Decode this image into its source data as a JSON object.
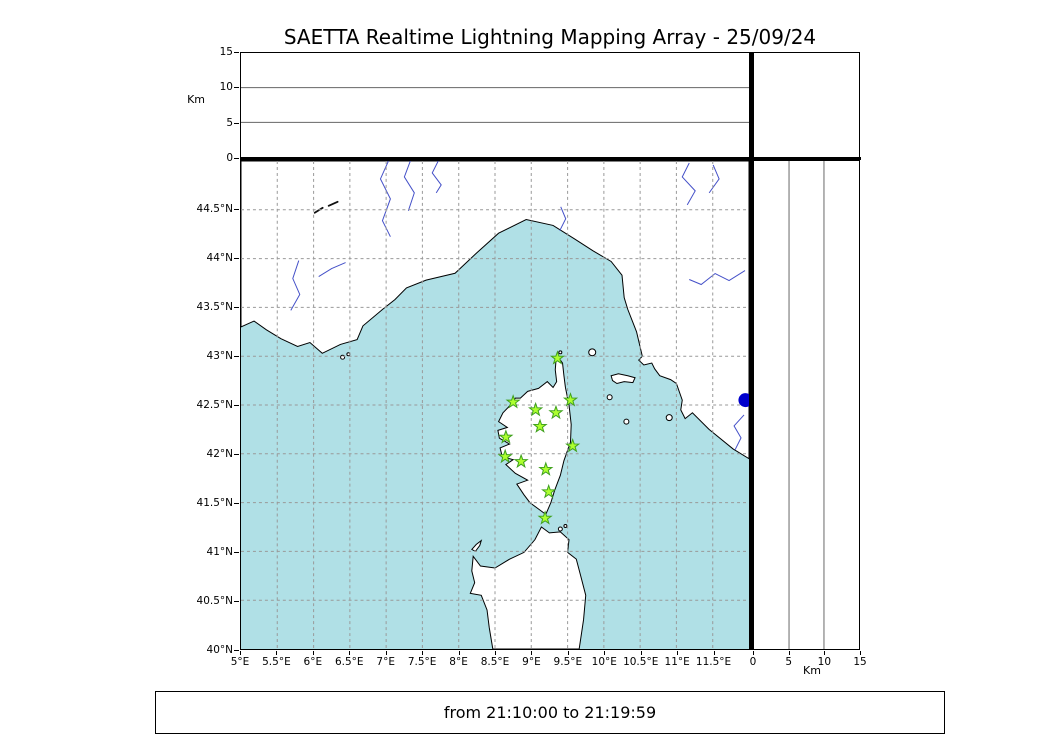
{
  "title": "SAETTA Realtime Lightning Mapping Array - 25/09/24",
  "status_bar": {
    "text": "from 21:10:00 to 21:19:59"
  },
  "colors": {
    "sea": "#b0e0e6",
    "land": "#ffffff",
    "coastline": "#000000",
    "river": "#4450c8",
    "grid": "#999999",
    "station_fill": "#adff2f",
    "station_stroke": "#3fa01e",
    "event_marker": "#0000cd"
  },
  "axes": {
    "altitude_label": "Km",
    "altitude_ticks": [
      0,
      5,
      10,
      15
    ],
    "altitude_range": [
      0,
      15
    ],
    "altitude_gridlines": [
      5,
      10
    ],
    "longitude_range": [
      5,
      12
    ],
    "latitude_range": [
      40,
      45
    ],
    "longitude_tick_values": [
      5,
      5.5,
      6,
      6.5,
      7,
      7.5,
      8,
      8.5,
      9,
      9.5,
      10,
      10.5,
      11,
      11.5
    ],
    "longitude_tick_labels": [
      "5°E",
      "5.5°E",
      "6°E",
      "6.5°E",
      "7°E",
      "7.5°E",
      "8°E",
      "8.5°E",
      "9°E",
      "9.5°E",
      "10°E",
      "10.5°E",
      "11°E",
      "11.5°E"
    ],
    "latitude_tick_values": [
      44.5,
      44,
      43.5,
      43,
      42.5,
      42,
      41.5,
      41,
      40.5,
      40
    ],
    "latitude_tick_labels": [
      "44.5°N",
      "44°N",
      "43.5°N",
      "43°N",
      "42.5°N",
      "42°N",
      "41.5°N",
      "41°N",
      "40.5°N",
      "40°N"
    ]
  },
  "stations": [
    {
      "lon": 9.36,
      "lat": 42.98
    },
    {
      "lon": 8.75,
      "lat": 42.53
    },
    {
      "lon": 9.06,
      "lat": 42.45
    },
    {
      "lon": 9.34,
      "lat": 42.42
    },
    {
      "lon": 9.54,
      "lat": 42.55
    },
    {
      "lon": 9.12,
      "lat": 42.28
    },
    {
      "lon": 8.65,
      "lat": 42.17
    },
    {
      "lon": 9.57,
      "lat": 42.08
    },
    {
      "lon": 8.64,
      "lat": 41.97
    },
    {
      "lon": 8.86,
      "lat": 41.92
    },
    {
      "lon": 9.2,
      "lat": 41.84
    },
    {
      "lon": 9.24,
      "lat": 41.61
    },
    {
      "lon": 9.19,
      "lat": 41.34
    }
  ],
  "event_marker": {
    "lon": 11.95,
    "lat": 42.55
  },
  "chart_data": [
    {
      "type": "scatter",
      "name": "altitude-vs-longitude-panel",
      "ylabel": "Km",
      "xlim": [
        5,
        12
      ],
      "ylim": [
        0,
        15
      ],
      "yticks": [
        0,
        5,
        10,
        15
      ],
      "gridlines_y": [
        5,
        10
      ],
      "points": []
    },
    {
      "type": "scatter",
      "name": "plan-view-map",
      "title": "SAETTA Realtime Lightning Mapping Array - 25/09/24",
      "xlim": [
        5,
        12
      ],
      "ylim": [
        40,
        45
      ],
      "xticks": [
        "5°E",
        "5.5°E",
        "6°E",
        "6.5°E",
        "7°E",
        "7.5°E",
        "8°E",
        "8.5°E",
        "9°E",
        "9.5°E",
        "10°E",
        "10.5°E",
        "11°E",
        "11.5°E"
      ],
      "yticks": [
        "44.5°N",
        "44°N",
        "43.5°N",
        "43°N",
        "42.5°N",
        "42°N",
        "41.5°N",
        "41°N",
        "40.5°N",
        "40°N"
      ],
      "grid": "dashed",
      "series": [
        {
          "name": "lma-stations",
          "marker": "star",
          "color": "#adff2f",
          "points": [
            [
              9.36,
              42.98
            ],
            [
              8.75,
              42.53
            ],
            [
              9.06,
              42.45
            ],
            [
              9.34,
              42.42
            ],
            [
              9.54,
              42.55
            ],
            [
              9.12,
              42.28
            ],
            [
              8.65,
              42.17
            ],
            [
              9.57,
              42.08
            ],
            [
              8.64,
              41.97
            ],
            [
              8.86,
              41.92
            ],
            [
              9.2,
              41.84
            ],
            [
              9.24,
              41.61
            ],
            [
              9.19,
              41.34
            ]
          ]
        },
        {
          "name": "event-marker",
          "marker": "circle",
          "color": "#0000cd",
          "points": [
            [
              11.95,
              42.55
            ]
          ]
        }
      ],
      "lightning_sources": []
    },
    {
      "type": "histogram",
      "name": "altitude-histogram-panel",
      "values": []
    },
    {
      "type": "scatter",
      "name": "altitude-vs-latitude-panel",
      "xlabel": "Km",
      "xlim": [
        0,
        15
      ],
      "ylim": [
        40,
        45
      ],
      "xticks": [
        0,
        5,
        10,
        15
      ],
      "gridlines_x": [
        5,
        10
      ],
      "points": []
    }
  ]
}
